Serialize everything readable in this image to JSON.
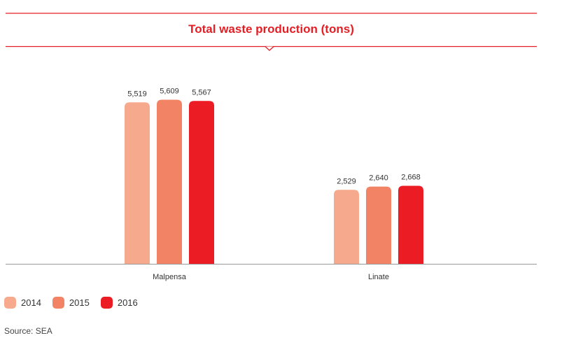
{
  "chart_data": {
    "type": "bar",
    "title": "Total waste production (tons)",
    "categories": [
      "Malpensa",
      "Linate"
    ],
    "series": [
      {
        "name": "2014",
        "values": [
          5519,
          2529
        ],
        "labels": [
          "5,519",
          "2,529"
        ],
        "color": "#f6a98c"
      },
      {
        "name": "2015",
        "values": [
          5609,
          2640
        ],
        "labels": [
          "5,609",
          "2,640"
        ],
        "color": "#f28465"
      },
      {
        "name": "2016",
        "values": [
          5567,
          2668
        ],
        "labels": [
          "5,567",
          "2,668"
        ],
        "color": "#ec1c24"
      }
    ],
    "xlabel": "",
    "ylabel": "",
    "ylim": [
      0,
      6000
    ],
    "grid": false,
    "legend_position": "bottom-left",
    "accent_color": "#e31e24"
  },
  "source": "Source: SEA"
}
